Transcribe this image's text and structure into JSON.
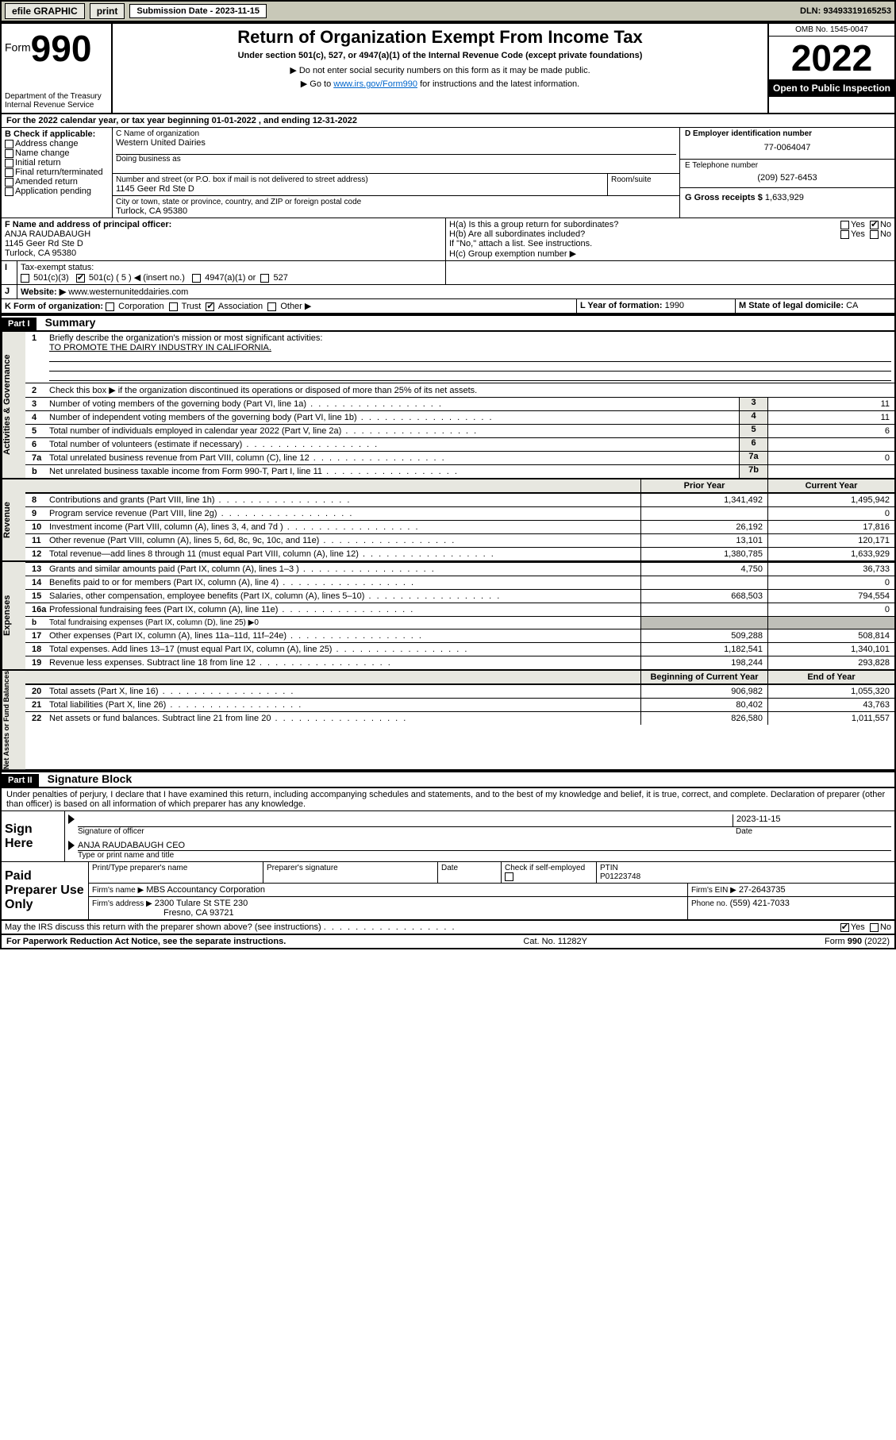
{
  "topbar": {
    "efile": "efile GRAPHIC",
    "print": "print",
    "subdate_label": "Submission Date - 2023-11-15",
    "dln": "DLN: 93493319165253"
  },
  "header": {
    "form_word": "Form",
    "form_num": "990",
    "dept": "Department of the Treasury",
    "irs": "Internal Revenue Service",
    "title": "Return of Organization Exempt From Income Tax",
    "subtitle": "Under section 501(c), 527, or 4947(a)(1) of the Internal Revenue Code (except private foundations)",
    "note1": "▶ Do not enter social security numbers on this form as it may be made public.",
    "note2_pre": "▶ Go to ",
    "note2_link": "www.irs.gov/Form990",
    "note2_post": " for instructions and the latest information.",
    "omb": "OMB No. 1545-0047",
    "year": "2022",
    "openpub": "Open to Public Inspection"
  },
  "lineA": "For the 2022 calendar year, or tax year beginning 01-01-2022   , and ending 12-31-2022",
  "boxB": {
    "title": "B Check if applicable:",
    "items": [
      "Address change",
      "Name change",
      "Initial return",
      "Final return/terminated",
      "Amended return",
      "Application pending"
    ]
  },
  "boxC": {
    "label_name": "C Name of organization",
    "org": "Western United Dairies",
    "dba_label": "Doing business as",
    "addr_label": "Number and street (or P.O. box if mail is not delivered to street address)",
    "room_label": "Room/suite",
    "addr": "1145 Geer Rd Ste D",
    "city_label": "City or town, state or province, country, and ZIP or foreign postal code",
    "city": "Turlock, CA  95380"
  },
  "boxD": {
    "label": "D Employer identification number",
    "val": "77-0064047"
  },
  "boxE": {
    "label": "E Telephone number",
    "val": "(209) 527-6453"
  },
  "boxG": {
    "label": "G Gross receipts $",
    "val": "1,633,929"
  },
  "boxF": {
    "label": "F Name and address of principal officer:",
    "name": "ANJA RAUDABAUGH",
    "addr1": "1145 Geer Rd Ste D",
    "addr2": "Turlock, CA  95380"
  },
  "boxH": {
    "a": "H(a)  Is this a group return for subordinates?",
    "b": "H(b)  Are all subordinates included?",
    "note": "If \"No,\" attach a list. See instructions.",
    "c": "H(c)  Group exemption number ▶"
  },
  "lineI": {
    "label": "Tax-exempt status:",
    "c3": "501(c)(3)",
    "c5": "501(c) ( 5 ) ◀ (insert no.)",
    "a1": "4947(a)(1) or",
    "s527": "527"
  },
  "lineJ": {
    "label": "Website: ▶",
    "val": "www.westernuniteddairies.com"
  },
  "lineK": {
    "label": "K Form of organization:",
    "corp": "Corporation",
    "trust": "Trust",
    "assoc": "Association",
    "other": "Other ▶"
  },
  "lineL": {
    "label": "L Year of formation:",
    "val": "1990"
  },
  "lineM": {
    "label": "M State of legal domicile:",
    "val": "CA"
  },
  "part1": {
    "hdr": "Part I",
    "title": "Summary",
    "q1": "Briefly describe the organization's mission or most significant activities:",
    "mission": "TO PROMOTE THE DAIRY INDUSTRY IN CALIFORNIA.",
    "q2": "Check this box ▶        if the organization discontinued its operations or disposed of more than 25% of its net assets.",
    "rows_gov": [
      {
        "n": "3",
        "t": "Number of voting members of the governing body (Part VI, line 1a)",
        "box": "3",
        "v": "11"
      },
      {
        "n": "4",
        "t": "Number of independent voting members of the governing body (Part VI, line 1b)",
        "box": "4",
        "v": "11"
      },
      {
        "n": "5",
        "t": "Total number of individuals employed in calendar year 2022 (Part V, line 2a)",
        "box": "5",
        "v": "6"
      },
      {
        "n": "6",
        "t": "Total number of volunteers (estimate if necessary)",
        "box": "6",
        "v": ""
      },
      {
        "n": "7a",
        "t": "Total unrelated business revenue from Part VIII, column (C), line 12",
        "box": "7a",
        "v": "0"
      },
      {
        "n": "b",
        "t": "Net unrelated business taxable income from Form 990-T, Part I, line 11",
        "box": "7b",
        "v": ""
      }
    ],
    "col_prior": "Prior Year",
    "col_curr": "Current Year",
    "rows_rev": [
      {
        "n": "8",
        "t": "Contributions and grants (Part VIII, line 1h)",
        "p": "1,341,492",
        "c": "1,495,942"
      },
      {
        "n": "9",
        "t": "Program service revenue (Part VIII, line 2g)",
        "p": "",
        "c": "0"
      },
      {
        "n": "10",
        "t": "Investment income (Part VIII, column (A), lines 3, 4, and 7d )",
        "p": "26,192",
        "c": "17,816"
      },
      {
        "n": "11",
        "t": "Other revenue (Part VIII, column (A), lines 5, 6d, 8c, 9c, 10c, and 11e)",
        "p": "13,101",
        "c": "120,171"
      },
      {
        "n": "12",
        "t": "Total revenue—add lines 8 through 11 (must equal Part VIII, column (A), line 12)",
        "p": "1,380,785",
        "c": "1,633,929"
      }
    ],
    "rows_exp": [
      {
        "n": "13",
        "t": "Grants and similar amounts paid (Part IX, column (A), lines 1–3 )",
        "p": "4,750",
        "c": "36,733"
      },
      {
        "n": "14",
        "t": "Benefits paid to or for members (Part IX, column (A), line 4)",
        "p": "",
        "c": "0"
      },
      {
        "n": "15",
        "t": "Salaries, other compensation, employee benefits (Part IX, column (A), lines 5–10)",
        "p": "668,503",
        "c": "794,554"
      },
      {
        "n": "16a",
        "t": "Professional fundraising fees (Part IX, column (A), line 11e)",
        "p": "",
        "c": "0"
      },
      {
        "n": "b",
        "t": "Total fundraising expenses (Part IX, column (D), line 25) ▶0",
        "p": "—",
        "c": "—"
      },
      {
        "n": "17",
        "t": "Other expenses (Part IX, column (A), lines 11a–11d, 11f–24e)",
        "p": "509,288",
        "c": "508,814"
      },
      {
        "n": "18",
        "t": "Total expenses. Add lines 13–17 (must equal Part IX, column (A), line 25)",
        "p": "1,182,541",
        "c": "1,340,101"
      },
      {
        "n": "19",
        "t": "Revenue less expenses. Subtract line 18 from line 12",
        "p": "198,244",
        "c": "293,828"
      }
    ],
    "col_begin": "Beginning of Current Year",
    "col_end": "End of Year",
    "rows_net": [
      {
        "n": "20",
        "t": "Total assets (Part X, line 16)",
        "p": "906,982",
        "c": "1,055,320"
      },
      {
        "n": "21",
        "t": "Total liabilities (Part X, line 26)",
        "p": "80,402",
        "c": "43,763"
      },
      {
        "n": "22",
        "t": "Net assets or fund balances. Subtract line 21 from line 20",
        "p": "826,580",
        "c": "1,011,557"
      }
    ],
    "vlab_gov": "Activities & Governance",
    "vlab_rev": "Revenue",
    "vlab_exp": "Expenses",
    "vlab_net": "Net Assets or Fund Balances"
  },
  "part2": {
    "hdr": "Part II",
    "title": "Signature Block",
    "decl": "Under penalties of perjury, I declare that I have examined this return, including accompanying schedules and statements, and to the best of my knowledge and belief, it is true, correct, and complete. Declaration of preparer (other than officer) is based on all information of which preparer has any knowledge.",
    "sign_here": "Sign Here",
    "sig_officer": "Signature of officer",
    "sig_date": "2023-11-15",
    "date_lbl": "Date",
    "officer_name": "ANJA RAUDABAUGH  CEO",
    "type_name": "Type or print name and title",
    "paid": "Paid Preparer Use Only",
    "h_print": "Print/Type preparer's name",
    "h_sig": "Preparer's signature",
    "h_date": "Date",
    "chk_self": "Check        if self-employed",
    "ptin_lbl": "PTIN",
    "ptin": "P01223748",
    "firm_name_lbl": "Firm's name    ▶",
    "firm_name": "MBS Accountancy Corporation",
    "firm_ein_lbl": "Firm's EIN ▶",
    "firm_ein": "27-2643735",
    "firm_addr_lbl": "Firm's address ▶",
    "firm_addr1": "2300 Tulare St STE 230",
    "firm_addr2": "Fresno, CA  93721",
    "phone_lbl": "Phone no.",
    "phone": "(559) 421-7033",
    "discuss": "May the IRS discuss this return with the preparer shown above? (see instructions)"
  },
  "footer": {
    "pra": "For Paperwork Reduction Act Notice, see the separate instructions.",
    "cat": "Cat. No. 11282Y",
    "form": "Form 990 (2022)"
  },
  "yesno": {
    "yes": "Yes",
    "no": "No"
  }
}
